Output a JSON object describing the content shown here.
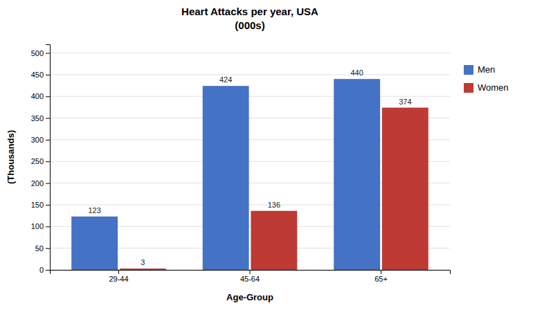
{
  "chart_data": {
    "type": "bar",
    "title": "Heart Attacks per year, USA",
    "subtitle": "(000s)",
    "xlabel": "Age-Group",
    "ylabel": "(Thousands)",
    "categories": [
      "29-44",
      "45-64",
      "65+"
    ],
    "series": [
      {
        "name": "Men",
        "color": "#4472C4",
        "values": [
          123,
          424,
          440
        ]
      },
      {
        "name": "Women",
        "color": "#BE3A34",
        "values": [
          3,
          136,
          374
        ]
      }
    ],
    "ylim": [
      0,
      520
    ],
    "yticks": [
      0,
      50,
      100,
      150,
      200,
      250,
      300,
      350,
      400,
      450,
      500
    ],
    "grid": true,
    "data_labels": true,
    "legend": "right"
  }
}
